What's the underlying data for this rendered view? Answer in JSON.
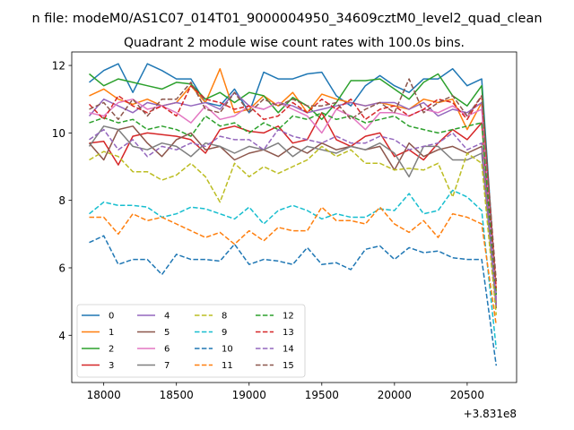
{
  "suptitle": "n file: modeM0/AS1C07_014T01_9000004950_34609cztM0_level2_quad_clean",
  "chart_data": {
    "type": "line",
    "title": "Quadrant 2 module wise count rates with 100.0s bins.",
    "xlabel": "",
    "ylabel": "",
    "x_offset_label": "+3.831e8",
    "xlim": [
      17780,
      20840
    ],
    "ylim": [
      2.6,
      12.4
    ],
    "xticks": [
      18000,
      18500,
      19000,
      19500,
      20000,
      20500
    ],
    "yticks": [
      4,
      6,
      8,
      10,
      12
    ],
    "grid": false,
    "legend": {
      "placement": "lower-left",
      "columns": 4
    },
    "x": [
      17900,
      18000,
      18100,
      18200,
      18300,
      18400,
      18500,
      18600,
      18700,
      18800,
      18900,
      19000,
      19100,
      19200,
      19300,
      19400,
      19500,
      19600,
      19700,
      19800,
      19900,
      20000,
      20100,
      20200,
      20300,
      20400,
      20500,
      20600,
      20700
    ],
    "series": [
      {
        "name": "0",
        "color": "#1f77b4",
        "dash": "solid",
        "values": [
          11.5,
          11.85,
          12.05,
          11.2,
          12.05,
          11.85,
          11.6,
          11.6,
          10.9,
          10.8,
          11.3,
          10.6,
          11.8,
          11.6,
          11.6,
          11.75,
          11.8,
          11.1,
          10.8,
          11.4,
          11.7,
          11.4,
          11.2,
          11.6,
          11.6,
          11.9,
          11.4,
          11.6,
          5.2
        ]
      },
      {
        "name": "1",
        "color": "#ff7f0e",
        "dash": "solid",
        "values": [
          11.1,
          11.3,
          11.0,
          10.85,
          11.0,
          10.8,
          10.9,
          11.4,
          10.9,
          11.9,
          10.6,
          10.7,
          11.1,
          10.8,
          11.2,
          10.6,
          11.15,
          11.0,
          10.9,
          10.8,
          10.9,
          10.8,
          10.7,
          11.0,
          10.9,
          11.0,
          10.1,
          10.9,
          5.3
        ]
      },
      {
        "name": "2",
        "color": "#2ca02c",
        "dash": "solid",
        "values": [
          11.75,
          11.4,
          11.6,
          11.5,
          11.4,
          11.3,
          11.5,
          11.45,
          11.0,
          11.2,
          10.9,
          11.2,
          11.1,
          10.6,
          11.05,
          10.8,
          10.4,
          10.9,
          11.55,
          11.55,
          11.6,
          11.3,
          11.0,
          11.5,
          11.75,
          11.1,
          10.8,
          11.4,
          5.0
        ]
      },
      {
        "name": "3",
        "color": "#d62728",
        "dash": "solid",
        "values": [
          9.7,
          9.75,
          9.05,
          9.9,
          10.0,
          9.95,
          9.9,
          9.8,
          9.4,
          10.1,
          10.2,
          10.05,
          10.0,
          10.2,
          9.7,
          9.8,
          10.6,
          9.8,
          9.6,
          9.9,
          10.0,
          9.3,
          9.5,
          9.2,
          9.7,
          10.1,
          9.8,
          10.3,
          4.9
        ]
      },
      {
        "name": "4",
        "color": "#9467bd",
        "dash": "solid",
        "values": [
          10.5,
          11.0,
          10.8,
          10.6,
          10.9,
          10.8,
          10.9,
          10.8,
          10.9,
          10.7,
          11.2,
          10.8,
          10.7,
          10.9,
          10.8,
          10.6,
          10.7,
          10.8,
          10.9,
          10.8,
          10.9,
          10.9,
          10.7,
          10.9,
          10.5,
          10.7,
          10.6,
          10.9,
          5.1
        ]
      },
      {
        "name": "5",
        "color": "#8c564b",
        "dash": "solid",
        "values": [
          9.7,
          9.2,
          10.1,
          10.2,
          9.7,
          9.3,
          9.8,
          10.0,
          9.5,
          9.6,
          9.2,
          9.4,
          9.5,
          9.3,
          9.6,
          9.4,
          9.7,
          9.5,
          9.6,
          9.5,
          9.6,
          8.9,
          9.7,
          9.3,
          9.5,
          9.6,
          9.4,
          9.6,
          4.8
        ]
      },
      {
        "name": "6",
        "color": "#e377c2",
        "dash": "solid",
        "values": [
          10.6,
          10.5,
          10.9,
          11.0,
          10.7,
          10.8,
          10.6,
          10.3,
          10.8,
          10.4,
          10.5,
          10.8,
          10.7,
          10.9,
          10.7,
          10.5,
          10.0,
          10.7,
          10.5,
          10.1,
          10.6,
          10.6,
          10.5,
          10.7,
          10.6,
          10.8,
          10.5,
          10.7,
          5.0
        ]
      },
      {
        "name": "7",
        "color": "#7f7f7f",
        "dash": "solid",
        "values": [
          9.6,
          10.2,
          10.1,
          9.6,
          9.5,
          9.7,
          9.6,
          9.3,
          9.7,
          9.6,
          9.4,
          9.6,
          9.5,
          9.7,
          9.3,
          9.6,
          9.5,
          9.4,
          9.6,
          9.5,
          9.7,
          9.4,
          8.7,
          9.6,
          9.6,
          9.2,
          9.2,
          9.4,
          4.9
        ]
      },
      {
        "name": "8",
        "color": "#bcbd22",
        "dash": "dashed",
        "values": [
          9.2,
          9.45,
          9.3,
          8.85,
          8.85,
          8.6,
          8.75,
          9.1,
          8.7,
          7.95,
          9.1,
          8.7,
          9.0,
          8.8,
          9.0,
          9.2,
          9.6,
          9.3,
          9.5,
          9.1,
          9.1,
          8.9,
          8.95,
          8.9,
          9.1,
          8.1,
          9.4,
          9.1,
          4.6
        ]
      },
      {
        "name": "9",
        "color": "#17becf",
        "dash": "dashed",
        "values": [
          7.6,
          7.95,
          7.85,
          7.85,
          7.8,
          7.5,
          7.6,
          7.8,
          7.75,
          7.6,
          7.45,
          7.8,
          7.3,
          7.7,
          7.85,
          7.7,
          7.45,
          7.6,
          7.5,
          7.5,
          7.75,
          7.7,
          8.2,
          7.6,
          7.7,
          8.3,
          8.1,
          7.7,
          3.6
        ]
      },
      {
        "name": "10",
        "color": "#1f77b4",
        "dash": "dashed",
        "values": [
          6.75,
          6.95,
          6.1,
          6.25,
          6.25,
          5.8,
          6.4,
          6.25,
          6.25,
          6.2,
          6.7,
          6.1,
          6.25,
          6.2,
          6.1,
          6.6,
          6.1,
          6.15,
          5.95,
          6.55,
          6.65,
          6.25,
          6.6,
          6.45,
          6.5,
          6.3,
          6.25,
          6.25,
          3.1
        ]
      },
      {
        "name": "11",
        "color": "#ff7f0e",
        "dash": "dashed",
        "values": [
          7.5,
          7.5,
          7.0,
          7.6,
          7.4,
          7.5,
          7.3,
          7.1,
          6.9,
          7.05,
          6.7,
          7.1,
          6.8,
          7.2,
          7.1,
          7.1,
          7.8,
          7.4,
          7.4,
          7.3,
          7.8,
          7.3,
          7.05,
          7.4,
          6.9,
          7.6,
          7.5,
          7.3,
          4.3
        ]
      },
      {
        "name": "12",
        "color": "#2ca02c",
        "dash": "dashed",
        "values": [
          10.3,
          10.45,
          10.3,
          10.4,
          10.1,
          10.2,
          10.1,
          9.9,
          10.5,
          10.2,
          10.3,
          10.0,
          10.3,
          10.1,
          10.5,
          10.4,
          10.6,
          10.4,
          10.5,
          10.3,
          10.4,
          10.5,
          10.2,
          10.1,
          10.0,
          10.1,
          10.2,
          10.3,
          5.2
        ]
      },
      {
        "name": "13",
        "color": "#d62728",
        "dash": "dashed",
        "values": [
          10.85,
          10.4,
          11.1,
          10.8,
          10.6,
          10.8,
          10.5,
          11.4,
          11.0,
          10.9,
          10.7,
          10.8,
          10.4,
          10.5,
          10.9,
          10.6,
          11.0,
          10.7,
          11.0,
          10.4,
          10.7,
          10.8,
          10.5,
          10.7,
          11.0,
          10.9,
          10.4,
          11.1,
          5.4
        ]
      },
      {
        "name": "14",
        "color": "#9467bd",
        "dash": "dashed",
        "values": [
          9.8,
          10.1,
          9.5,
          9.8,
          9.3,
          9.6,
          9.5,
          9.7,
          9.6,
          9.9,
          9.8,
          9.8,
          9.5,
          10.1,
          9.9,
          9.8,
          9.7,
          9.9,
          9.7,
          9.7,
          9.9,
          9.8,
          9.5,
          9.6,
          9.7,
          10.0,
          9.5,
          9.7,
          4.9
        ]
      },
      {
        "name": "15",
        "color": "#8c564b",
        "dash": "dashed",
        "values": [
          10.7,
          10.9,
          10.4,
          11.0,
          10.5,
          11.0,
          11.0,
          11.5,
          10.7,
          10.6,
          11.2,
          10.6,
          11.0,
          10.8,
          11.0,
          10.8,
          10.8,
          10.9,
          10.4,
          10.7,
          10.9,
          10.6,
          11.6,
          10.6,
          10.9,
          11.1,
          10.5,
          11.1,
          5.6
        ]
      }
    ]
  }
}
